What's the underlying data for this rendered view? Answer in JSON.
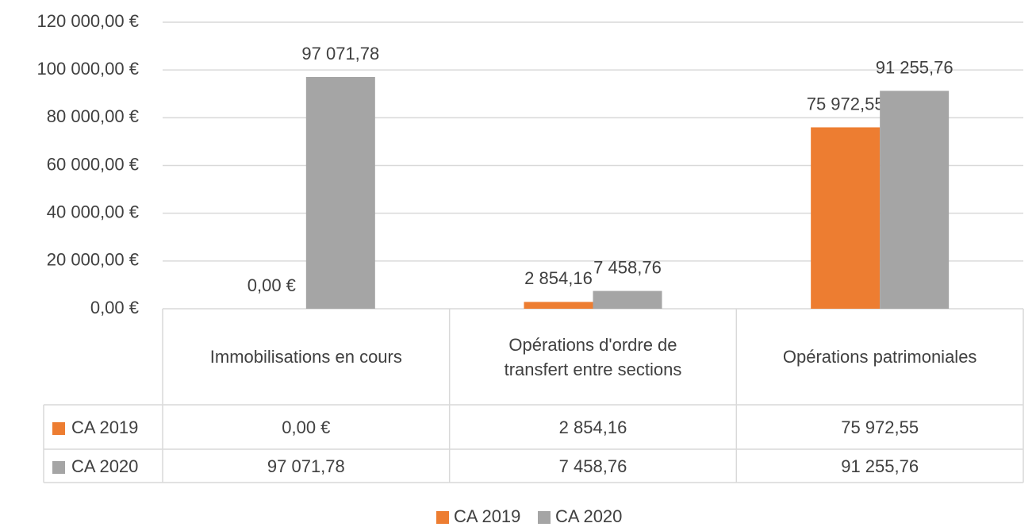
{
  "chart_data": {
    "type": "bar",
    "categories": [
      "Immobilisations en cours",
      "Opérations d'ordre de transfert entre sections",
      "Opérations patrimoniales"
    ],
    "series": [
      {
        "name": "CA 2019",
        "color": "#ED7D31",
        "values": [
          0,
          2854.16,
          75972.55
        ],
        "value_labels": [
          "0,00 €",
          "2 854,16",
          "75 972,55"
        ]
      },
      {
        "name": "CA 2020",
        "color": "#A5A5A5",
        "values": [
          97071.78,
          7458.76,
          91255.76
        ],
        "value_labels": [
          "97 071,78",
          "7 458,76",
          "91 255,76"
        ]
      }
    ],
    "ylim": [
      0,
      120000
    ],
    "yticks": [
      {
        "value": 0,
        "label": "0,00 €"
      },
      {
        "value": 20000,
        "label": "20 000,00 €"
      },
      {
        "value": 40000,
        "label": "40 000,00 €"
      },
      {
        "value": 60000,
        "label": "60 000,00 €"
      },
      {
        "value": 80000,
        "label": "80 000,00 €"
      },
      {
        "value": 100000,
        "label": "100 000,00 €"
      },
      {
        "value": 120000,
        "label": "120 000,00 €"
      }
    ],
    "grid": true,
    "legend": "bottom"
  }
}
